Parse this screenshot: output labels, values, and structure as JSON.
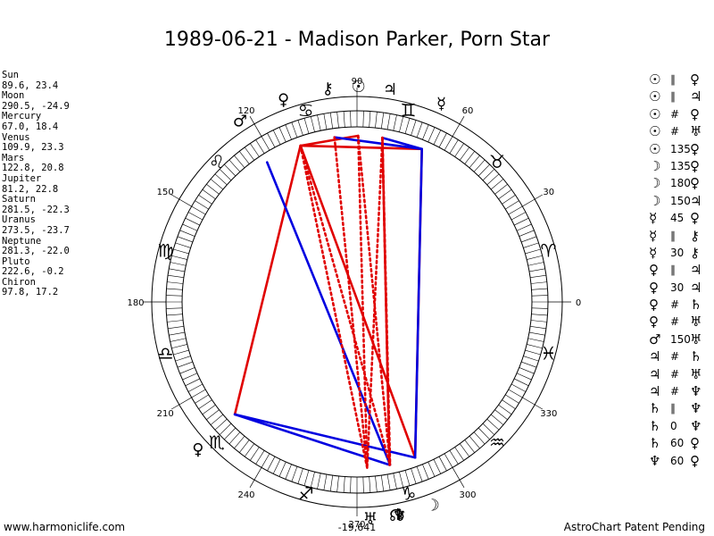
{
  "title": "1989-06-21 - Madison Parker, Porn Star",
  "planets": [
    {
      "name": "Sun",
      "coords": "89.6, 23.4"
    },
    {
      "name": "Moon",
      "coords": "290.5, -24.9"
    },
    {
      "name": "Mercury",
      "coords": "67.0, 18.4"
    },
    {
      "name": "Venus",
      "coords": "109.9, 23.3"
    },
    {
      "name": "Mars",
      "coords": "122.8, 20.8"
    },
    {
      "name": "Jupiter",
      "coords": "81.2, 22.8"
    },
    {
      "name": "Saturn",
      "coords": "281.5, -22.3"
    },
    {
      "name": "Uranus",
      "coords": "273.5, -23.7"
    },
    {
      "name": "Neptune",
      "coords": "281.3, -22.0"
    },
    {
      "name": "Pluto",
      "coords": "222.6, -0.2"
    },
    {
      "name": "Chiron",
      "coords": "97.8, 17.2"
    }
  ],
  "aspects": [
    {
      "p1": "☉",
      "sym": "∥",
      "p2": "♀"
    },
    {
      "p1": "☉",
      "sym": "∥",
      "p2": "♃"
    },
    {
      "p1": "☉",
      "sym": "#",
      "p2": "♀"
    },
    {
      "p1": "☉",
      "sym": "#",
      "p2": "♅"
    },
    {
      "p1": "☉",
      "sym": "135",
      "p2": "♀"
    },
    {
      "p1": "☽",
      "sym": "135",
      "p2": "♀"
    },
    {
      "p1": "☽",
      "sym": "180",
      "p2": "♀"
    },
    {
      "p1": "☽",
      "sym": "150",
      "p2": "♃"
    },
    {
      "p1": "☿",
      "sym": "45",
      "p2": "♀"
    },
    {
      "p1": "☿",
      "sym": "∥",
      "p2": "⚷"
    },
    {
      "p1": "☿",
      "sym": "30",
      "p2": "⚷"
    },
    {
      "p1": "♀",
      "sym": "∥",
      "p2": "♃"
    },
    {
      "p1": "♀",
      "sym": "30",
      "p2": "♃"
    },
    {
      "p1": "♀",
      "sym": "#",
      "p2": "♄"
    },
    {
      "p1": "♀",
      "sym": "#",
      "p2": "♅"
    },
    {
      "p1": "♂",
      "sym": "150",
      "p2": "♅"
    },
    {
      "p1": "♃",
      "sym": "#",
      "p2": "♄"
    },
    {
      "p1": "♃",
      "sym": "#",
      "p2": "♅"
    },
    {
      "p1": "♃",
      "sym": "#",
      "p2": "♆"
    },
    {
      "p1": "♄",
      "sym": "∥",
      "p2": "♆"
    },
    {
      "p1": "♄",
      "sym": "0",
      "p2": "♆"
    },
    {
      "p1": "♄",
      "sym": "60",
      "p2": "♀"
    },
    {
      "p1": "♆",
      "sym": "60",
      "p2": "♀"
    }
  ],
  "footer": {
    "left": "www.harmoniclife.com",
    "right": "AstroChart Patent Pending"
  },
  "chart_data": {
    "type": "scatter",
    "title": "1989-06-21 - Madison Parker, Porn Star",
    "axis": "ecliptic longitude (degrees)",
    "degree_labels": [
      "0",
      "30",
      "60",
      "90",
      "120",
      "150",
      "180",
      "210",
      "240",
      "270",
      "300",
      "330"
    ],
    "signs": [
      "♈",
      "♉",
      "♊",
      "♋",
      "♌",
      "♍",
      "♎",
      "♏",
      "♐",
      "♑",
      "♒",
      "♓"
    ],
    "bodies": [
      {
        "name": "Sun",
        "symbol": "☉",
        "longitude": 89.6,
        "latitude": 23.4
      },
      {
        "name": "Moon",
        "symbol": "☽",
        "longitude": 290.5,
        "latitude": -24.9
      },
      {
        "name": "Mercury",
        "symbol": "☿",
        "longitude": 67.0,
        "latitude": 18.4
      },
      {
        "name": "Venus",
        "symbol": "♀",
        "longitude": 109.9,
        "latitude": 23.3
      },
      {
        "name": "Mars",
        "symbol": "♂",
        "longitude": 122.8,
        "latitude": 20.8
      },
      {
        "name": "Jupiter",
        "symbol": "♃",
        "longitude": 81.2,
        "latitude": 22.8
      },
      {
        "name": "Saturn",
        "symbol": "♄",
        "longitude": 281.5,
        "latitude": -22.3
      },
      {
        "name": "Uranus",
        "symbol": "♅",
        "longitude": 273.5,
        "latitude": -23.7
      },
      {
        "name": "Neptune",
        "symbol": "♆",
        "longitude": 281.3,
        "latitude": -22.0
      },
      {
        "name": "Pluto",
        "symbol": "♀",
        "longitude": 222.6,
        "latitude": -0.2
      },
      {
        "name": "Chiron",
        "symbol": "⚷",
        "longitude": 97.8,
        "latitude": 17.2
      }
    ],
    "extra_points": [
      {
        "symbol": "☊",
        "longitude": 280.5
      }
    ],
    "bottom_label": "-19,641",
    "aspect_lines": [
      {
        "from": 109.9,
        "to": 222.6,
        "color": "#e00000",
        "style": "solid"
      },
      {
        "from": 109.9,
        "to": 290.5,
        "color": "#e00000",
        "style": "solid"
      },
      {
        "from": 81.2,
        "to": 281.3,
        "color": "#e00000",
        "style": "solid"
      },
      {
        "from": 67.0,
        "to": 290.5,
        "color": "#e00000",
        "style": "solid"
      },
      {
        "from": 67.0,
        "to": 109.9,
        "color": "#e00000",
        "style": "solid"
      },
      {
        "from": 89.6,
        "to": 109.9,
        "color": "#e00000",
        "style": "solid"
      },
      {
        "from": 122.8,
        "to": 281.5,
        "color": "#0000e0",
        "style": "solid"
      },
      {
        "from": 222.6,
        "to": 281.3,
        "color": "#0000e0",
        "style": "solid"
      },
      {
        "from": 222.6,
        "to": 290.5,
        "color": "#0000e0",
        "style": "solid"
      },
      {
        "from": 81.2,
        "to": 67.0,
        "color": "#0000e0",
        "style": "solid"
      },
      {
        "from": 97.8,
        "to": 67.0,
        "color": "#0000e0",
        "style": "solid"
      },
      {
        "from": 67.0,
        "to": 290.5,
        "color": "#0000e0",
        "style": "solid"
      },
      {
        "from": 89.6,
        "to": 281.5,
        "color": "#e00000",
        "style": "dotted"
      },
      {
        "from": 89.6,
        "to": 273.5,
        "color": "#e00000",
        "style": "dotted"
      },
      {
        "from": 109.9,
        "to": 281.5,
        "color": "#e00000",
        "style": "dotted"
      },
      {
        "from": 109.9,
        "to": 273.5,
        "color": "#e00000",
        "style": "dotted"
      },
      {
        "from": 81.2,
        "to": 281.5,
        "color": "#e00000",
        "style": "dotted"
      },
      {
        "from": 81.2,
        "to": 273.5,
        "color": "#e00000",
        "style": "dotted"
      },
      {
        "from": 81.2,
        "to": 281.3,
        "color": "#e00000",
        "style": "dotted"
      },
      {
        "from": 97.8,
        "to": 273.5,
        "color": "#e00000",
        "style": "dotted"
      }
    ]
  }
}
